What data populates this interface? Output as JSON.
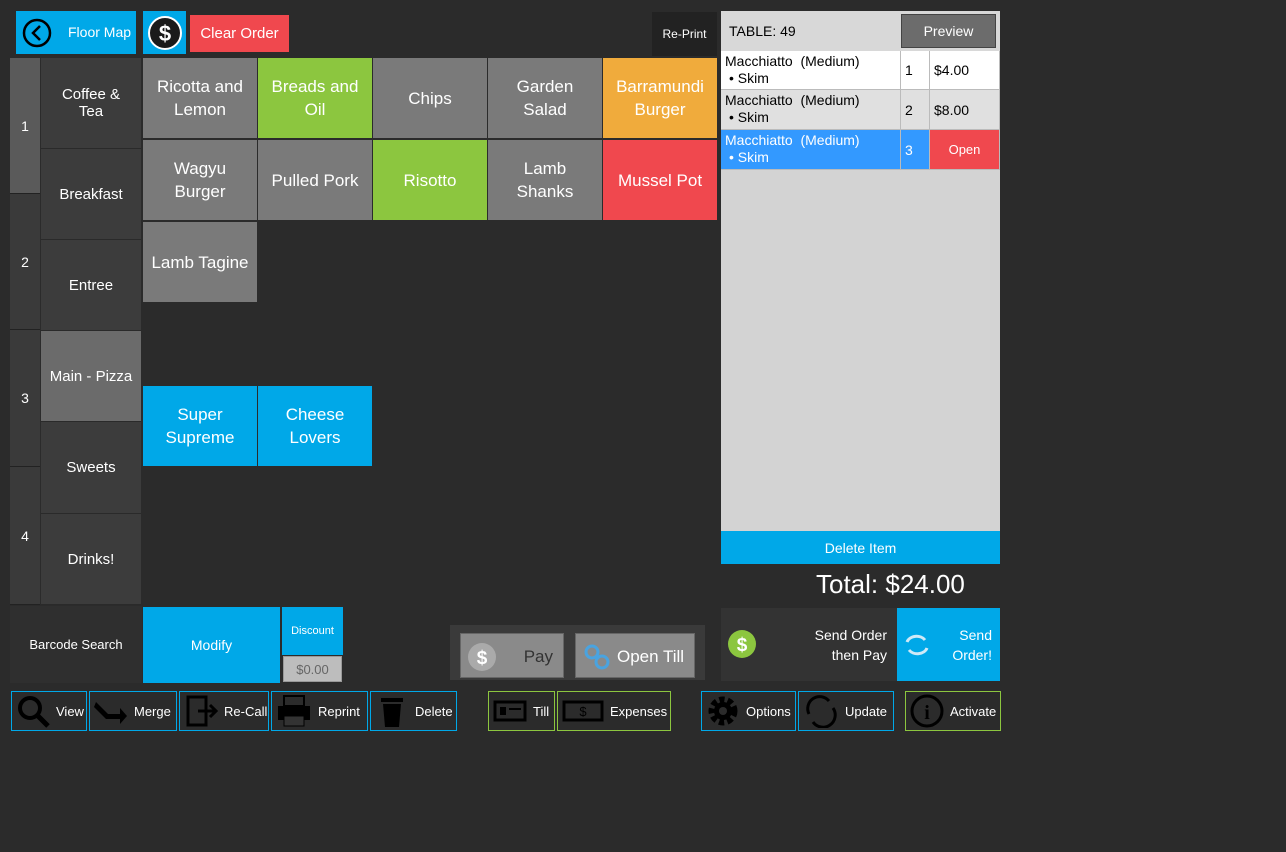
{
  "header": {
    "floor_map": "Floor Map",
    "clear_order": "Clear Order",
    "reprint": "Re-Print"
  },
  "pages": [
    "1",
    "2",
    "3",
    "4"
  ],
  "categories": [
    "Coffee & Tea",
    "Breakfast",
    "Entree",
    "Main - Pizza",
    "Sweets",
    "Drinks!"
  ],
  "items": [
    "Ricotta and Lemon",
    "Breads and Oil",
    "Chips",
    "Garden Salad",
    "Barramundi Burger",
    "Wagyu Burger",
    "Pulled Pork",
    "Risotto",
    "Lamb Shanks",
    "Mussel Pot",
    "Lamb Tagine",
    "Super Supreme",
    "Cheese Lovers"
  ],
  "order": {
    "table": "TABLE: 49",
    "preview": "Preview",
    "rows": [
      [
        "Macchiatto  (Medium)",
        "• Skim",
        "1",
        "$4.00"
      ],
      [
        "Macchiatto  (Medium)",
        "• Skim",
        "2",
        "$8.00"
      ],
      [
        "Macchiatto  (Medium)",
        "• Skim",
        "3",
        "Open"
      ]
    ],
    "delete_item": "Delete Item",
    "total": "Total: $24.00"
  },
  "bottom": {
    "barcode_search": "Barcode Search",
    "modify": "Modify",
    "discount": "Discount",
    "discount_value": "$0.00",
    "pay": "Pay",
    "open_till": "Open Till",
    "send_then_pay": "Send Order then Pay",
    "send_order": "Send Order!"
  },
  "toolbar": [
    "View",
    "Merge",
    "Re-Call",
    "Reprint",
    "Delete",
    "Till",
    "Expenses",
    "Options",
    "Update",
    "Activate"
  ]
}
